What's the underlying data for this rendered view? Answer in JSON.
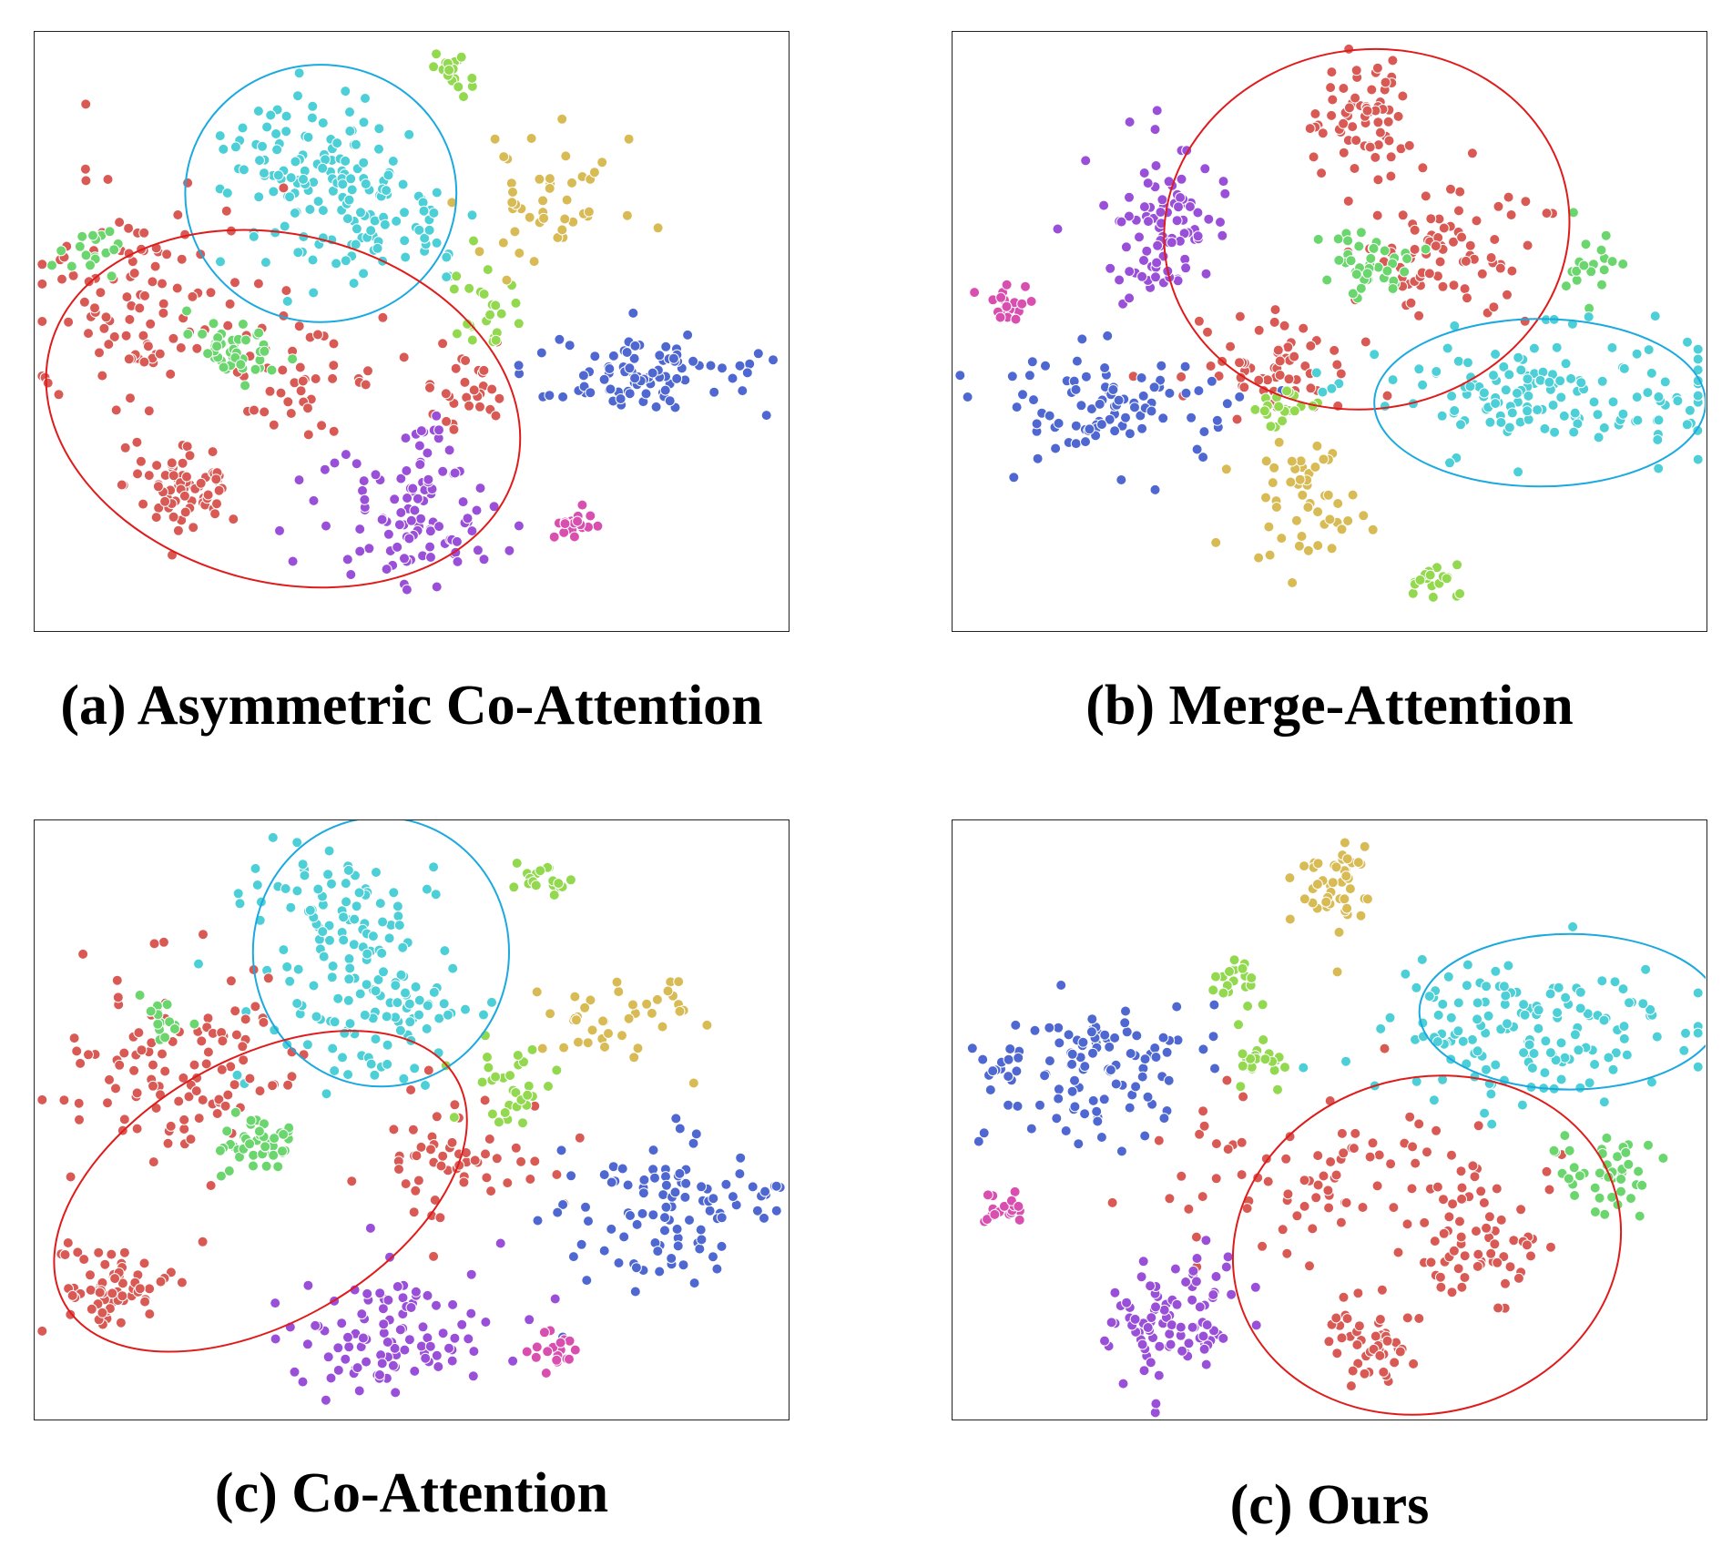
{
  "colors": {
    "red": "#d95a55",
    "cyan": "#4ccfd6",
    "green": "#6bd66e",
    "lime": "#93d94f",
    "yellow": "#d8bb55",
    "blue": "#4f68d1",
    "purple": "#9a4fd9",
    "magenta": "#d94fb0",
    "ellipse_red": "#e01b1b",
    "ellipse_blue": "#1aa9e0"
  },
  "chart_data": [
    {
      "type": "scatter",
      "title": "(a) Asymmetric Co-Attention",
      "xlim": [
        0,
        100
      ],
      "ylim": [
        0,
        100
      ],
      "clusters": [
        {
          "color": "cyan",
          "cx": 37,
          "cy": 20,
          "sx": 6,
          "sy": 5,
          "n": 80
        },
        {
          "color": "cyan",
          "cx": 43,
          "cy": 32,
          "sx": 8,
          "sy": 6,
          "n": 90
        },
        {
          "color": "red",
          "cx": 14,
          "cy": 46,
          "sx": 7,
          "sy": 10,
          "n": 110
        },
        {
          "color": "red",
          "cx": 35,
          "cy": 58,
          "sx": 5,
          "sy": 4,
          "n": 40
        },
        {
          "color": "red",
          "cx": 20,
          "cy": 76,
          "sx": 4,
          "sy": 3.5,
          "n": 70
        },
        {
          "color": "red",
          "cx": 57,
          "cy": 58,
          "sx": 3,
          "sy": 4,
          "n": 30
        },
        {
          "color": "green",
          "cx": 27,
          "cy": 53,
          "sx": 3,
          "sy": 2.5,
          "n": 45
        },
        {
          "color": "green",
          "cx": 8,
          "cy": 37,
          "sx": 2,
          "sy": 2,
          "n": 18
        },
        {
          "color": "lime",
          "cx": 56,
          "cy": 7,
          "sx": 1.6,
          "sy": 1.6,
          "n": 18
        },
        {
          "color": "lime",
          "cx": 60,
          "cy": 47,
          "sx": 3,
          "sy": 3,
          "n": 25
        },
        {
          "color": "yellow",
          "cx": 67,
          "cy": 28,
          "sx": 5,
          "sy": 6,
          "n": 45
        },
        {
          "color": "blue",
          "cx": 81,
          "cy": 57,
          "sx": 8,
          "sy": 3.5,
          "n": 90
        },
        {
          "color": "purple",
          "cx": 50,
          "cy": 82,
          "sx": 6,
          "sy": 6,
          "n": 90
        },
        {
          "color": "purple",
          "cx": 51,
          "cy": 69,
          "sx": 2,
          "sy": 2.5,
          "n": 15
        },
        {
          "color": "magenta",
          "cx": 71,
          "cy": 82,
          "sx": 1.6,
          "sy": 1.6,
          "n": 18
        }
      ],
      "ellipses": [
        {
          "color": "ellipse_blue",
          "cx": 38,
          "cy": 27,
          "rx": 18,
          "ry": 21.5,
          "rot": 0
        },
        {
          "color": "ellipse_red",
          "cx": 33,
          "cy": 63,
          "rx": 32,
          "ry": 29,
          "rot": 15
        }
      ]
    },
    {
      "type": "scatter",
      "title": "(b) Merge-Attention",
      "xlim": [
        0,
        100
      ],
      "ylim": [
        0,
        100
      ],
      "clusters": [
        {
          "color": "red",
          "cx": 54,
          "cy": 14,
          "sx": 3,
          "sy": 5,
          "n": 70
        },
        {
          "color": "red",
          "cx": 66,
          "cy": 36,
          "sx": 6,
          "sy": 6,
          "n": 80
        },
        {
          "color": "red",
          "cx": 42,
          "cy": 56,
          "sx": 6,
          "sy": 4,
          "n": 60
        },
        {
          "color": "purple",
          "cx": 29,
          "cy": 32,
          "sx": 4,
          "sy": 6,
          "n": 90
        },
        {
          "color": "green",
          "cx": 55,
          "cy": 39,
          "sx": 3,
          "sy": 2.5,
          "n": 40
        },
        {
          "color": "green",
          "cx": 85,
          "cy": 39,
          "sx": 2,
          "sy": 3,
          "n": 18
        },
        {
          "color": "cyan",
          "cx": 80,
          "cy": 60,
          "sx": 12,
          "sy": 5,
          "n": 150
        },
        {
          "color": "blue",
          "cx": 20,
          "cy": 62,
          "sx": 8,
          "sy": 5,
          "n": 90
        },
        {
          "color": "yellow",
          "cx": 47,
          "cy": 79,
          "sx": 4,
          "sy": 5,
          "n": 50
        },
        {
          "color": "lime",
          "cx": 64,
          "cy": 92,
          "sx": 1.6,
          "sy": 1.6,
          "n": 18
        },
        {
          "color": "lime",
          "cx": 44,
          "cy": 63,
          "sx": 3,
          "sy": 2,
          "n": 20
        },
        {
          "color": "magenta",
          "cx": 7,
          "cy": 46,
          "sx": 1.6,
          "sy": 1.6,
          "n": 18
        }
      ],
      "ellipses": [
        {
          "color": "ellipse_red",
          "cx": 55,
          "cy": 33,
          "rx": 27,
          "ry": 30,
          "rot": -10
        },
        {
          "color": "ellipse_blue",
          "cx": 78,
          "cy": 62,
          "rx": 22,
          "ry": 14,
          "rot": 0
        }
      ]
    },
    {
      "type": "scatter",
      "title": "(c) Co-Attention",
      "xlim": [
        0,
        100
      ],
      "ylim": [
        0,
        100
      ],
      "clusters": [
        {
          "color": "cyan",
          "cx": 39,
          "cy": 14,
          "sx": 5,
          "sy": 6,
          "n": 80
        },
        {
          "color": "cyan",
          "cx": 45,
          "cy": 33,
          "sx": 7,
          "sy": 6,
          "n": 90
        },
        {
          "color": "red",
          "cx": 20,
          "cy": 42,
          "sx": 8,
          "sy": 9,
          "n": 110
        },
        {
          "color": "red",
          "cx": 11,
          "cy": 78,
          "sx": 4,
          "sy": 3.5,
          "n": 65
        },
        {
          "color": "red",
          "cx": 56,
          "cy": 58,
          "sx": 6,
          "sy": 6,
          "n": 55
        },
        {
          "color": "green",
          "cx": 29,
          "cy": 54,
          "sx": 3,
          "sy": 2.5,
          "n": 45
        },
        {
          "color": "green",
          "cx": 17,
          "cy": 34,
          "sx": 2,
          "sy": 2,
          "n": 15
        },
        {
          "color": "lime",
          "cx": 67,
          "cy": 10,
          "sx": 1.6,
          "sy": 1.6,
          "n": 18
        },
        {
          "color": "lime",
          "cx": 63,
          "cy": 45,
          "sx": 3,
          "sy": 3,
          "n": 30
        },
        {
          "color": "yellow",
          "cx": 78,
          "cy": 33,
          "sx": 6,
          "sy": 4,
          "n": 40
        },
        {
          "color": "blue",
          "cx": 84,
          "cy": 65,
          "sx": 7,
          "sy": 6,
          "n": 100
        },
        {
          "color": "purple",
          "cx": 46,
          "cy": 86,
          "sx": 7,
          "sy": 6,
          "n": 100
        },
        {
          "color": "magenta",
          "cx": 69,
          "cy": 89,
          "sx": 1.6,
          "sy": 1.6,
          "n": 18
        }
      ],
      "ellipses": [
        {
          "color": "ellipse_blue",
          "cx": 46,
          "cy": 22,
          "rx": 17,
          "ry": 22.5,
          "rot": 0
        },
        {
          "color": "ellipse_red",
          "cx": 30,
          "cy": 62,
          "rx": 30,
          "ry": 22,
          "rot": -30
        }
      ]
    },
    {
      "type": "scatter",
      "title": "(c) Ours",
      "xlim": [
        0,
        100
      ],
      "ylim": [
        0,
        100
      ],
      "clusters": [
        {
          "color": "yellow",
          "cx": 50,
          "cy": 11,
          "sx": 3,
          "sy": 4,
          "n": 45
        },
        {
          "color": "blue",
          "cx": 18,
          "cy": 41,
          "sx": 7,
          "sy": 6,
          "n": 110
        },
        {
          "color": "lime",
          "cx": 38,
          "cy": 27,
          "sx": 1.8,
          "sy": 1.8,
          "n": 18
        },
        {
          "color": "lime",
          "cx": 41,
          "cy": 40,
          "sx": 2,
          "sy": 3,
          "n": 22
        },
        {
          "color": "cyan",
          "cx": 76,
          "cy": 36,
          "sx": 10,
          "sy": 6,
          "n": 150
        },
        {
          "color": "red",
          "cx": 50,
          "cy": 60,
          "sx": 12,
          "sy": 7,
          "n": 90
        },
        {
          "color": "red",
          "cx": 70,
          "cy": 70,
          "sx": 4,
          "sy": 6,
          "n": 60
        },
        {
          "color": "red",
          "cx": 56,
          "cy": 88,
          "sx": 3,
          "sy": 3.5,
          "n": 50
        },
        {
          "color": "green",
          "cx": 88,
          "cy": 58,
          "sx": 4,
          "sy": 3,
          "n": 45
        },
        {
          "color": "purple",
          "cx": 29,
          "cy": 82,
          "sx": 5,
          "sy": 6,
          "n": 90
        },
        {
          "color": "magenta",
          "cx": 7,
          "cy": 65,
          "sx": 1.6,
          "sy": 1.6,
          "n": 18
        }
      ],
      "ellipses": [
        {
          "color": "ellipse_blue",
          "cx": 82,
          "cy": 32,
          "rx": 20,
          "ry": 13,
          "rot": 0
        },
        {
          "color": "ellipse_red",
          "cx": 63,
          "cy": 71,
          "rx": 26,
          "ry": 28,
          "rot": -15
        }
      ]
    }
  ]
}
